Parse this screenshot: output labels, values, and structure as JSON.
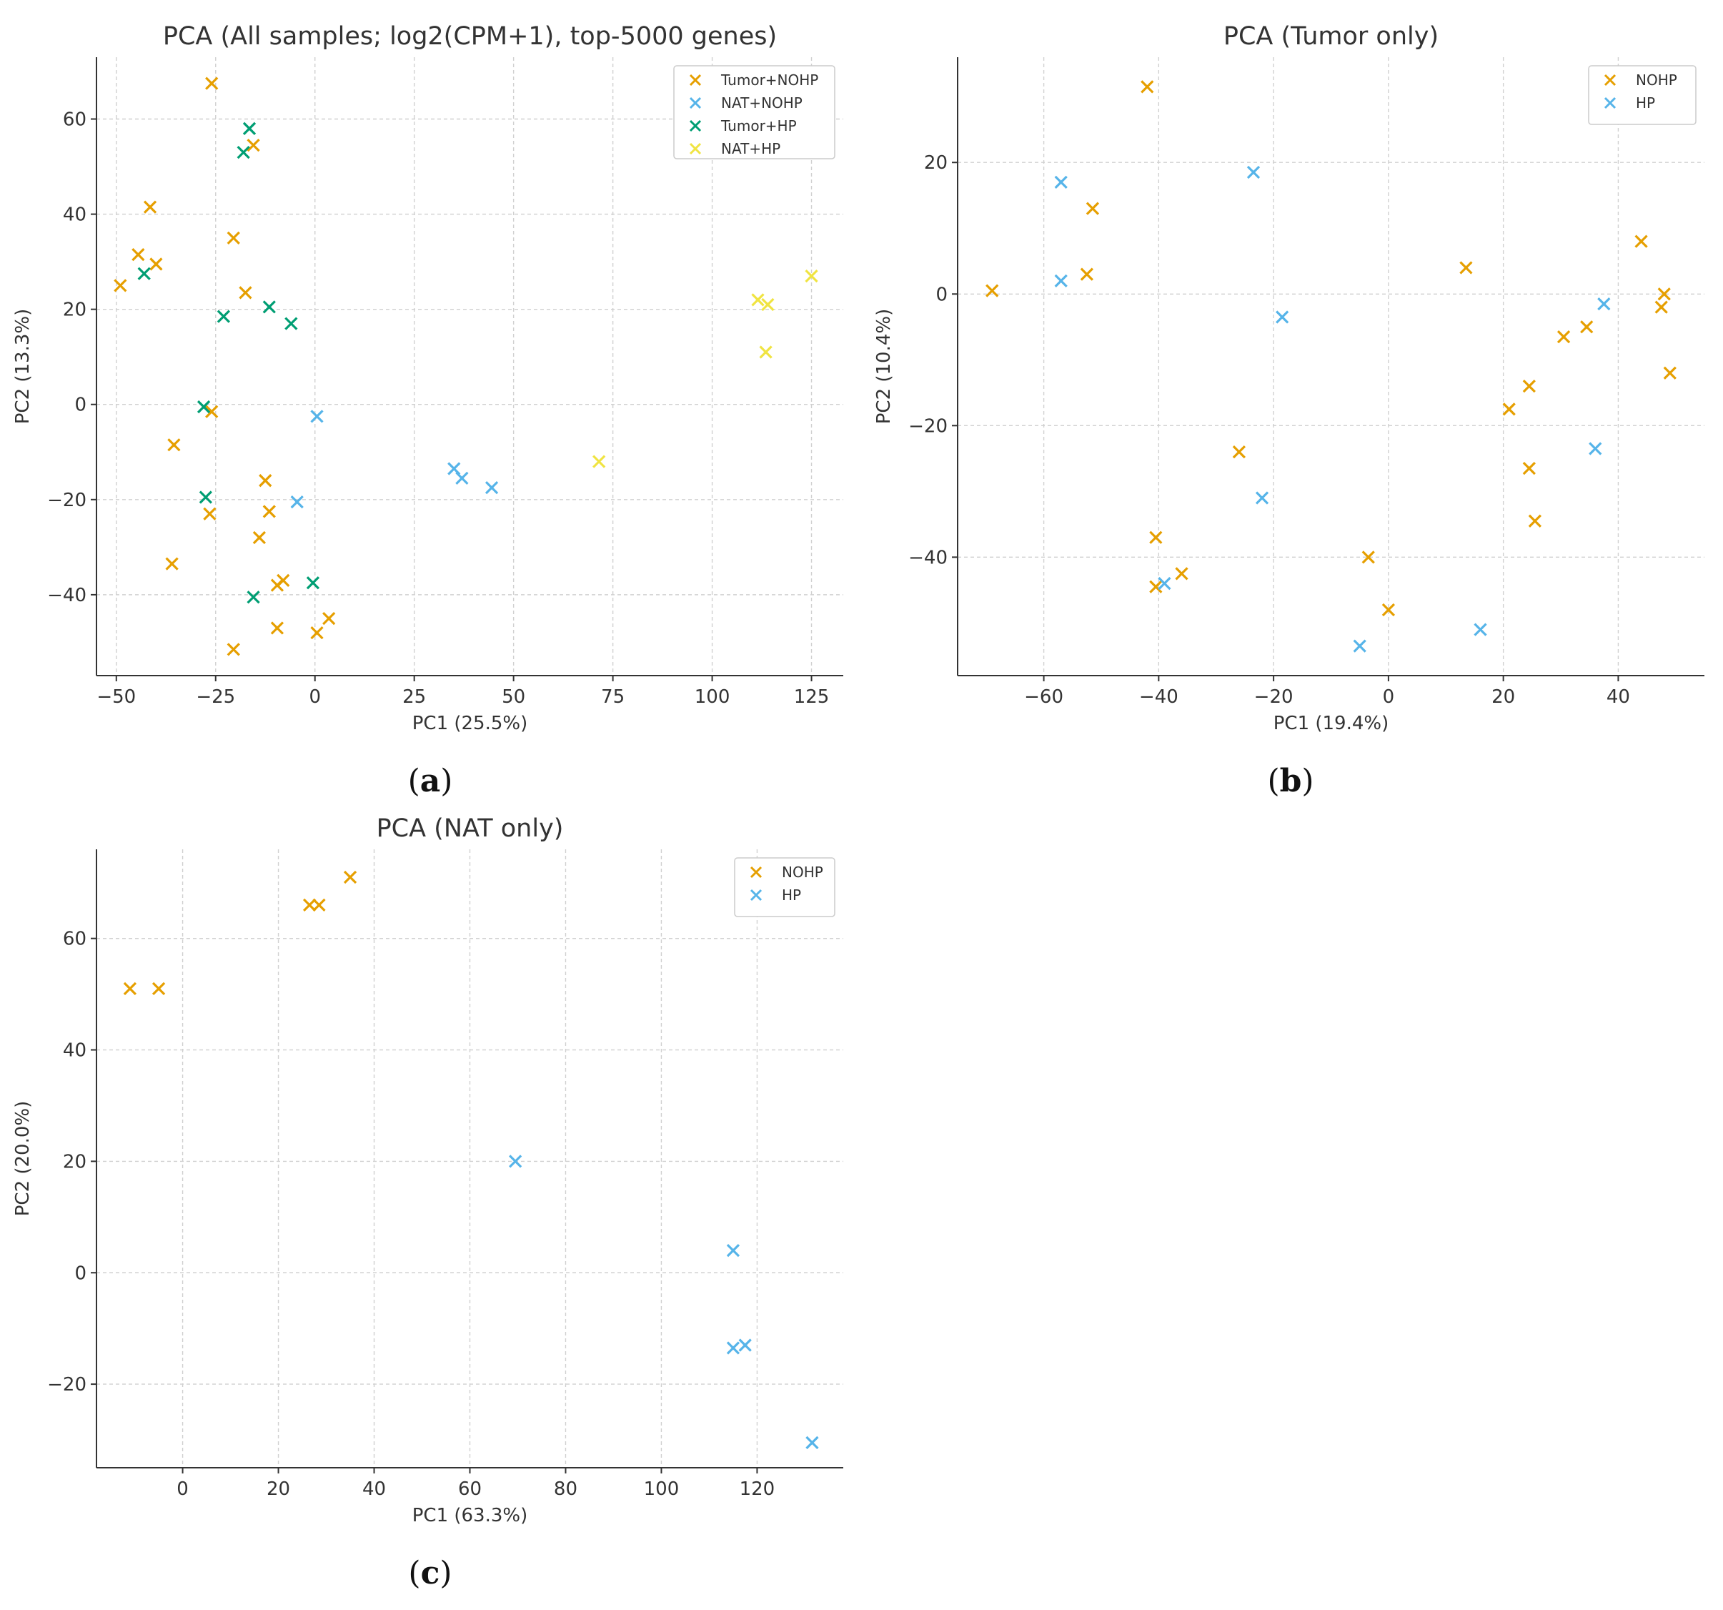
{
  "chart_data": [
    {
      "type": "scatter",
      "panel_label": "a",
      "title": "PCA (All samples; log2(CPM+1), top-5000 genes)",
      "xlabel": "PC1 (25.5%)",
      "ylabel": "PC2 (13.3%)",
      "xlim": [
        -55,
        133
      ],
      "ylim": [
        -57,
        73
      ],
      "xticks": [
        -50,
        -25,
        0,
        25,
        50,
        75,
        100,
        125
      ],
      "yticks": [
        -40,
        -20,
        0,
        20,
        40,
        60
      ],
      "grid": true,
      "legend_position": "top-right",
      "marker": "x",
      "series": [
        {
          "name": "Tumor+NOHP",
          "color": "#E69F00",
          "points": [
            [
              -26,
              67.5
            ],
            [
              -15.5,
              54.5
            ],
            [
              -41.5,
              41.5
            ],
            [
              -20.5,
              35
            ],
            [
              -44.5,
              31.5
            ],
            [
              -40,
              29.5
            ],
            [
              -49,
              25
            ],
            [
              -17.5,
              23.5
            ],
            [
              -26,
              -1.5
            ],
            [
              -35.5,
              -8.5
            ],
            [
              -12.5,
              -16
            ],
            [
              -11.5,
              -22.5
            ],
            [
              -26.5,
              -23
            ],
            [
              -14,
              -28
            ],
            [
              -36,
              -33.5
            ],
            [
              -8,
              -37
            ],
            [
              -9.5,
              -38
            ],
            [
              -9.5,
              -47
            ],
            [
              0.5,
              -48
            ],
            [
              3.5,
              -45
            ],
            [
              -20.5,
              -51.5
            ]
          ]
        },
        {
          "name": "NAT+NOHP",
          "color": "#56B4E9",
          "points": [
            [
              0.5,
              -2.5
            ],
            [
              -4.5,
              -20.5
            ],
            [
              35,
              -13.5
            ],
            [
              37,
              -15.5
            ],
            [
              44.5,
              -17.5
            ]
          ]
        },
        {
          "name": "Tumor+HP",
          "color": "#009E73",
          "points": [
            [
              -16.5,
              58
            ],
            [
              -18,
              53
            ],
            [
              -43,
              27.5
            ],
            [
              -23,
              18.5
            ],
            [
              -11.5,
              20.5
            ],
            [
              -6,
              17
            ],
            [
              -28,
              -0.5
            ],
            [
              -27.5,
              -19.5
            ],
            [
              -15.5,
              -40.5
            ],
            [
              -0.5,
              -37.5
            ]
          ]
        },
        {
          "name": "NAT+HP",
          "color": "#F0E442",
          "points": [
            [
              111.5,
              22
            ],
            [
              114,
              21
            ],
            [
              125,
              27
            ],
            [
              113.5,
              11
            ],
            [
              71.5,
              -12
            ]
          ]
        }
      ]
    },
    {
      "type": "scatter",
      "panel_label": "b",
      "title": "PCA (Tumor only)",
      "xlabel": "PC1 (19.4%)",
      "ylabel": "PC2 (10.4%)",
      "xlim": [
        -75,
        55
      ],
      "ylim": [
        -58,
        36
      ],
      "xticks": [
        -60,
        -40,
        -20,
        0,
        20,
        40
      ],
      "yticks": [
        -40,
        -20,
        0,
        20
      ],
      "grid": true,
      "legend_position": "top-right",
      "marker": "x",
      "series": [
        {
          "name": "NOHP",
          "color": "#E69F00",
          "points": [
            [
              -42,
              31.5
            ],
            [
              -51.5,
              13
            ],
            [
              -52.5,
              3
            ],
            [
              -69,
              0.5
            ],
            [
              13.5,
              4
            ],
            [
              44,
              8
            ],
            [
              48,
              0
            ],
            [
              47.5,
              -2
            ],
            [
              49,
              -12
            ],
            [
              34.5,
              -5
            ],
            [
              30.5,
              -6.5
            ],
            [
              24.5,
              -14
            ],
            [
              21,
              -17.5
            ],
            [
              -26,
              -24
            ],
            [
              24.5,
              -26.5
            ],
            [
              25.5,
              -34.5
            ],
            [
              -40.5,
              -37
            ],
            [
              -3.5,
              -40
            ],
            [
              -36,
              -42.5
            ],
            [
              -40.5,
              -44.5
            ],
            [
              0,
              -48
            ]
          ]
        },
        {
          "name": "HP",
          "color": "#56B4E9",
          "points": [
            [
              -57,
              17
            ],
            [
              -23.5,
              18.5
            ],
            [
              -57,
              2
            ],
            [
              -18.5,
              -3.5
            ],
            [
              37.5,
              -1.5
            ],
            [
              36,
              -23.5
            ],
            [
              -22,
              -31
            ],
            [
              -39,
              -44
            ],
            [
              16,
              -51
            ],
            [
              -5,
              -53.5
            ]
          ]
        }
      ]
    },
    {
      "type": "scatter",
      "panel_label": "c",
      "title": "PCA (NAT only)",
      "xlabel": "PC1 (63.3%)",
      "ylabel": "PC2 (20.0%)",
      "xlim": [
        -18,
        138
      ],
      "ylim": [
        -35,
        76
      ],
      "xticks": [
        0,
        20,
        40,
        60,
        80,
        100,
        120
      ],
      "yticks": [
        -20,
        0,
        20,
        40,
        60
      ],
      "grid": true,
      "legend_position": "top-right",
      "marker": "x",
      "series": [
        {
          "name": "NOHP",
          "color": "#E69F00",
          "points": [
            [
              35,
              71
            ],
            [
              26.5,
              66
            ],
            [
              28.5,
              66
            ],
            [
              -11,
              51
            ],
            [
              -5,
              51
            ]
          ]
        },
        {
          "name": "HP",
          "color": "#56B4E9",
          "points": [
            [
              69.5,
              20
            ],
            [
              115,
              4
            ],
            [
              115,
              -13.5
            ],
            [
              117.5,
              -13
            ],
            [
              131.5,
              -30.5
            ]
          ]
        }
      ]
    }
  ]
}
